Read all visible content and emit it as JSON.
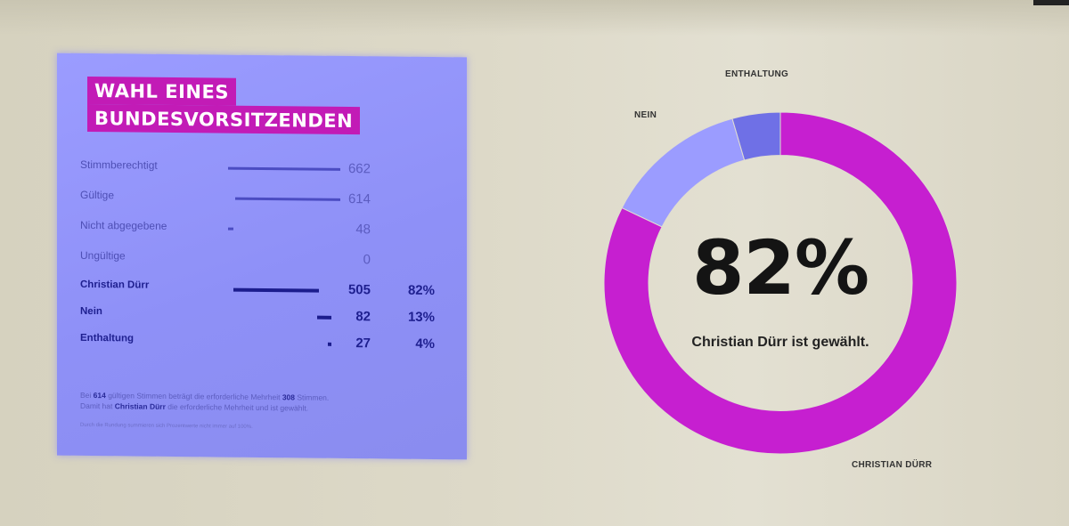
{
  "panel": {
    "title_line1": "WAHL EINES",
    "title_line2": "BUNDESVORSITZENDEN",
    "rows": [
      {
        "label": "Stimmberechtigt",
        "value": "662",
        "pct": "",
        "bold": false
      },
      {
        "label": "Gültige",
        "value": "614",
        "pct": "",
        "bold": false
      },
      {
        "label": "Nicht abgegebene",
        "value": "48",
        "pct": "",
        "bold": false
      },
      {
        "label": "Ungültige",
        "value": "0",
        "pct": "",
        "bold": false
      },
      {
        "label": "Christian Dürr",
        "value": "505",
        "pct": "82%",
        "bold": true
      },
      {
        "label": "Nein",
        "value": "82",
        "pct": "13%",
        "bold": true
      },
      {
        "label": "Enthaltung",
        "value": "27",
        "pct": "4%",
        "bold": true
      }
    ],
    "note_line1_a": "Bei ",
    "note_line1_b": "614",
    "note_line1_c": " gültigen Stimmen beträgt die erforderliche Mehrheit ",
    "note_line1_d": "308",
    "note_line1_e": " Stimmen.",
    "note_line2_a": "Damit hat ",
    "note_line2_b": "Christian Dürr",
    "note_line2_c": " die erforderliche Mehrheit und ist gewählt.",
    "note_small": "Durch die Rundung summieren sich Prozentwerte nicht immer auf 100%."
  },
  "chart_data": {
    "type": "pie",
    "donut": true,
    "categories": [
      "Christian Dürr",
      "Nein",
      "Enthaltung"
    ],
    "labels": [
      "CHRISTIAN DÜRR",
      "NEIN",
      "ENTHALTUNG"
    ],
    "values": [
      505,
      82,
      27
    ],
    "colors": [
      "#c61fd0",
      "#9b9cff",
      "#6f70e6"
    ],
    "center_value": "82%",
    "center_text": "Christian Dürr ist gewählt."
  }
}
